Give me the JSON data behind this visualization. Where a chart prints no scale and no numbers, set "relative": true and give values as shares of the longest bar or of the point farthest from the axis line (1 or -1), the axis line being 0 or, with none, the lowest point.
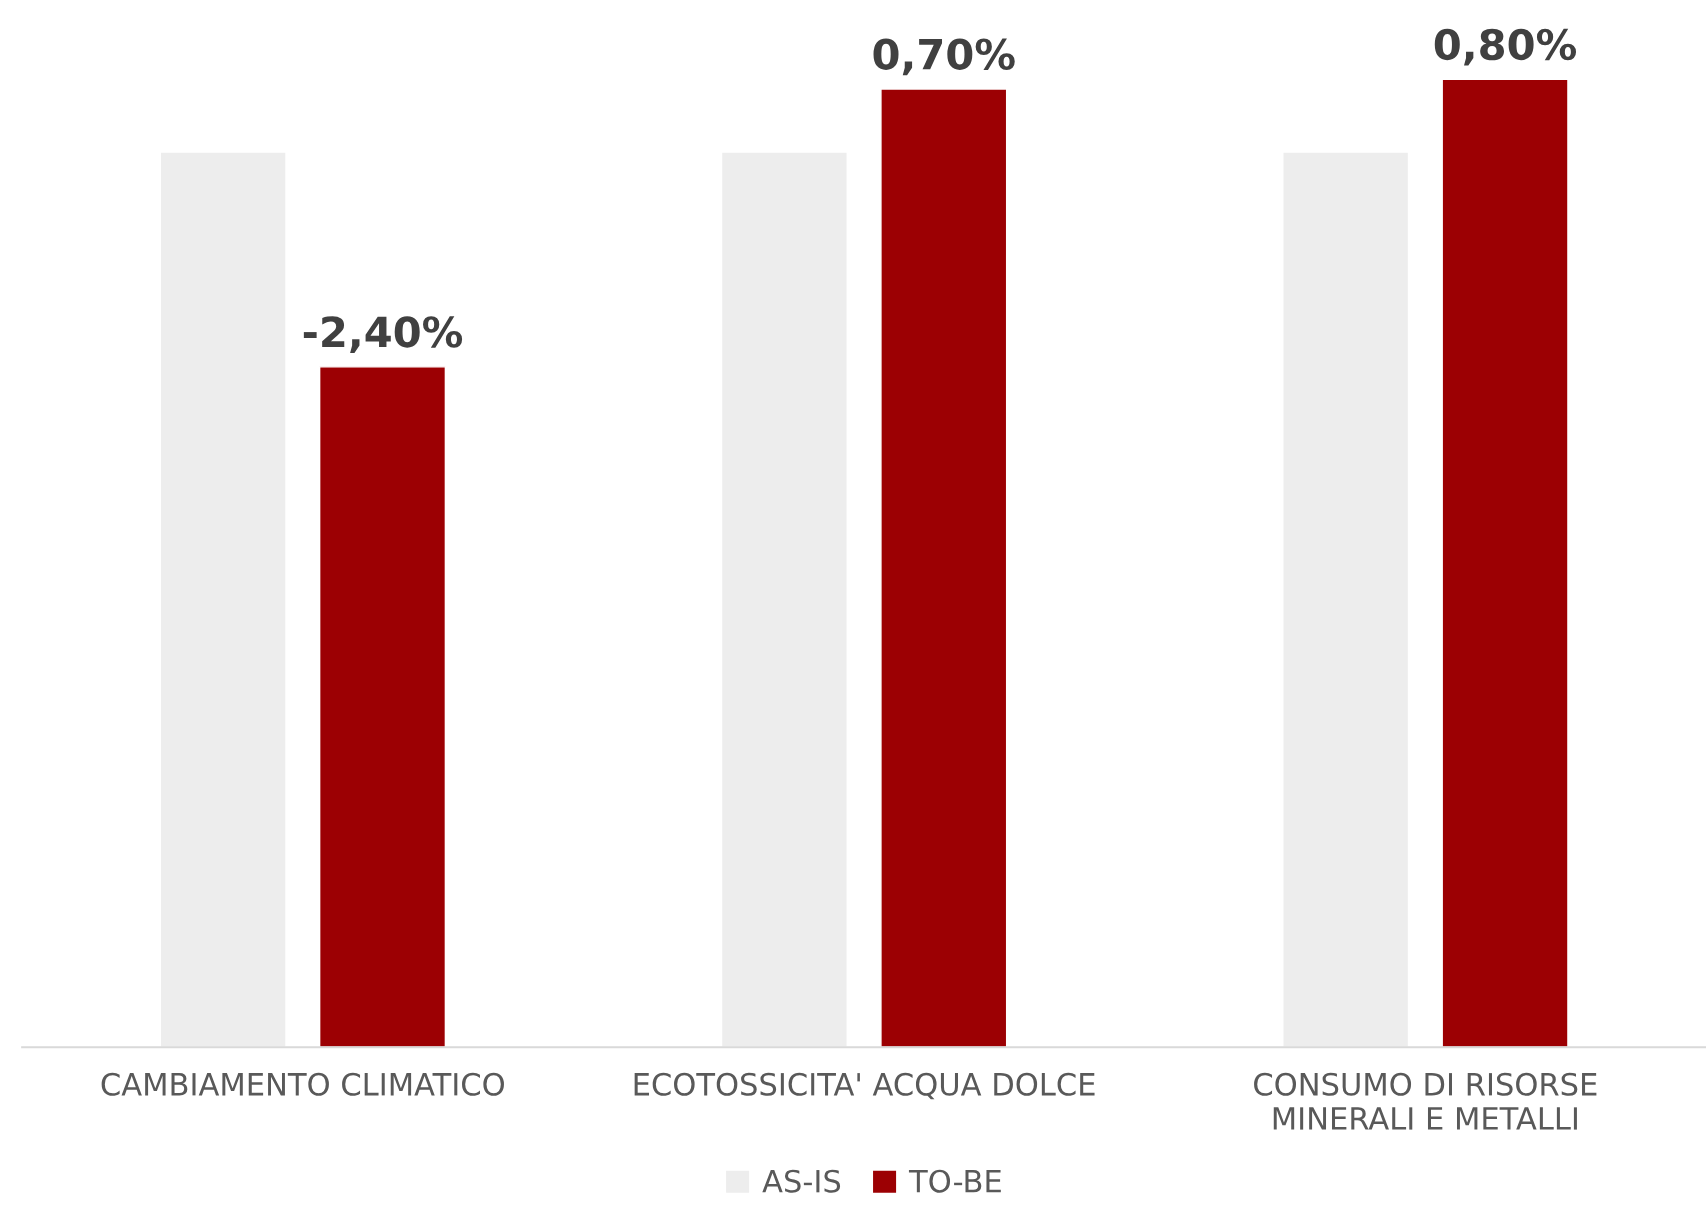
{
  "chart_data": {
    "type": "bar",
    "relative": true,
    "categories": [
      "CAMBIAMENTO CLIMATICO",
      "ECOTOSSICITA' ACQUA DOLCE",
      "CONSUMO DI RISORSE\nMINERALI E METALLI"
    ],
    "series": [
      {
        "name": "AS-IS",
        "color": "#ededed",
        "values": [
          0.925,
          0.925,
          0.925
        ]
      },
      {
        "name": "TO-BE",
        "color": "#9c0003",
        "values": [
          0.703,
          0.99,
          1.0
        ]
      }
    ],
    "annotations": [
      "-2,40%",
      "0,70%",
      "0,80%"
    ],
    "legend": "bottom",
    "grid": false
  }
}
